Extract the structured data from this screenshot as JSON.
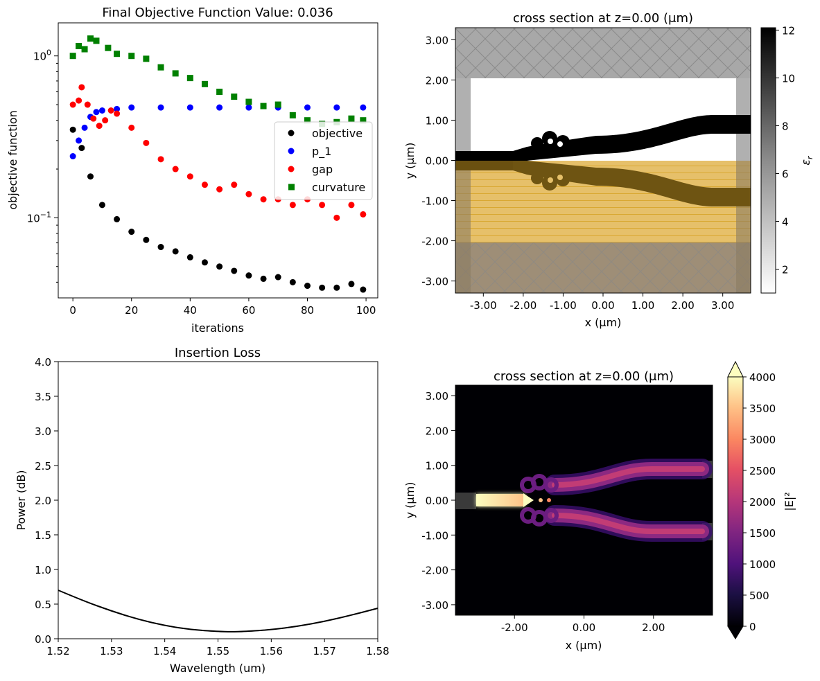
{
  "chart_data": [
    {
      "type": "scatter",
      "title": "Final Objective Function Value: 0.036",
      "xlabel": "iterations",
      "ylabel": "objective function",
      "yscale": "log",
      "xlim": [
        -5,
        104
      ],
      "ylim": [
        0.032,
        1.6
      ],
      "xticks": [
        0,
        20,
        40,
        60,
        80,
        100
      ],
      "yticks": [
        {
          "label": "10",
          "sup": "0",
          "value": 1
        },
        {
          "label": "10",
          "sup": "−1",
          "value": 0.1
        }
      ],
      "legend_position": "center-right",
      "series": [
        {
          "name": "objective",
          "color": "#000000",
          "marker": "circle",
          "points": [
            [
              0,
              0.35
            ],
            [
              3,
              0.27
            ],
            [
              6,
              0.18
            ],
            [
              10,
              0.12
            ],
            [
              15,
              0.098
            ],
            [
              20,
              0.082
            ],
            [
              25,
              0.073
            ],
            [
              30,
              0.066
            ],
            [
              35,
              0.062
            ],
            [
              40,
              0.057
            ],
            [
              45,
              0.053
            ],
            [
              50,
              0.05
            ],
            [
              55,
              0.047
            ],
            [
              60,
              0.044
            ],
            [
              65,
              0.042
            ],
            [
              70,
              0.043
            ],
            [
              75,
              0.04
            ],
            [
              80,
              0.038
            ],
            [
              85,
              0.037
            ],
            [
              90,
              0.037
            ],
            [
              95,
              0.039
            ],
            [
              99,
              0.036
            ]
          ]
        },
        {
          "name": "p_1",
          "color": "#0000ff",
          "marker": "circle",
          "points": [
            [
              0,
              0.24
            ],
            [
              2,
              0.3
            ],
            [
              4,
              0.36
            ],
            [
              6,
              0.42
            ],
            [
              8,
              0.45
            ],
            [
              10,
              0.46
            ],
            [
              15,
              0.47
            ],
            [
              20,
              0.48
            ],
            [
              30,
              0.48
            ],
            [
              40,
              0.48
            ],
            [
              50,
              0.48
            ],
            [
              60,
              0.48
            ],
            [
              70,
              0.48
            ],
            [
              80,
              0.48
            ],
            [
              90,
              0.48
            ],
            [
              99,
              0.48
            ]
          ]
        },
        {
          "name": "gap",
          "color": "#ff0000",
          "marker": "circle",
          "points": [
            [
              0,
              0.5
            ],
            [
              2,
              0.53
            ],
            [
              3,
              0.64
            ],
            [
              5,
              0.5
            ],
            [
              7,
              0.41
            ],
            [
              9,
              0.37
            ],
            [
              11,
              0.4
            ],
            [
              13,
              0.46
            ],
            [
              15,
              0.44
            ],
            [
              20,
              0.36
            ],
            [
              25,
              0.29
            ],
            [
              30,
              0.23
            ],
            [
              35,
              0.2
            ],
            [
              40,
              0.18
            ],
            [
              45,
              0.16
            ],
            [
              50,
              0.15
            ],
            [
              55,
              0.16
            ],
            [
              60,
              0.14
            ],
            [
              65,
              0.13
            ],
            [
              70,
              0.13
            ],
            [
              75,
              0.12
            ],
            [
              80,
              0.13
            ],
            [
              85,
              0.12
            ],
            [
              90,
              0.1
            ],
            [
              95,
              0.12
            ],
            [
              99,
              0.105
            ]
          ]
        },
        {
          "name": "curvature",
          "color": "#008000",
          "marker": "square",
          "points": [
            [
              0,
              1.0
            ],
            [
              2,
              1.15
            ],
            [
              4,
              1.1
            ],
            [
              6,
              1.28
            ],
            [
              8,
              1.24
            ],
            [
              12,
              1.12
            ],
            [
              15,
              1.03
            ],
            [
              20,
              1.0
            ],
            [
              25,
              0.96
            ],
            [
              30,
              0.85
            ],
            [
              35,
              0.78
            ],
            [
              40,
              0.73
            ],
            [
              45,
              0.67
            ],
            [
              50,
              0.6
            ],
            [
              55,
              0.56
            ],
            [
              60,
              0.52
            ],
            [
              65,
              0.49
            ],
            [
              70,
              0.5
            ],
            [
              75,
              0.43
            ],
            [
              80,
              0.4
            ],
            [
              85,
              0.38
            ],
            [
              90,
              0.39
            ],
            [
              95,
              0.41
            ],
            [
              99,
              0.4
            ]
          ]
        }
      ]
    },
    {
      "type": "heatmap",
      "title": "cross section at z=0.00 (μm)",
      "xlabel": "x (μm)",
      "ylabel": "y (μm)",
      "xlim": [
        -3.7,
        3.7
      ],
      "ylim": [
        -3.3,
        3.3
      ],
      "xticks": [
        "-3.00",
        "-2.00",
        "-1.00",
        "0.00",
        "1.00",
        "2.00",
        "3.00"
      ],
      "yticks": [
        "3.00",
        "2.00",
        "1.00",
        "0.00",
        "-1.00",
        "-2.00",
        "-3.00"
      ],
      "colorbar_label": "ε",
      "colorbar_label_sub": "r",
      "colorbar_ticks": [
        "12",
        "10",
        "8",
        "6",
        "4",
        "2"
      ],
      "colorbar_range": [
        1,
        12.1
      ],
      "colormap": "Greys"
    },
    {
      "type": "line",
      "title": "Insertion Loss",
      "xlabel": "Wavelength (um)",
      "ylabel": "Power (dB)",
      "xlim": [
        1.52,
        1.58
      ],
      "ylim": [
        0,
        4
      ],
      "xticks": [
        "1.52",
        "1.53",
        "1.54",
        "1.55",
        "1.56",
        "1.57",
        "1.58"
      ],
      "yticks": [
        "0.0",
        "0.5",
        "1.0",
        "1.5",
        "2.0",
        "2.5",
        "3.0",
        "3.5",
        "4.0"
      ],
      "series": [
        {
          "color": "#000000",
          "x": [
            1.52,
            1.525,
            1.53,
            1.535,
            1.54,
            1.545,
            1.55,
            1.5525,
            1.555,
            1.56,
            1.565,
            1.57,
            1.575,
            1.58
          ],
          "y": [
            0.7,
            0.54,
            0.4,
            0.28,
            0.19,
            0.13,
            0.105,
            0.1,
            0.105,
            0.13,
            0.18,
            0.25,
            0.34,
            0.44
          ]
        }
      ]
    },
    {
      "type": "heatmap",
      "title": "cross section at z=0.00 (μm)",
      "xlabel": "x (μm)",
      "ylabel": "y (μm)",
      "xlim": [
        -3.7,
        3.7
      ],
      "ylim": [
        -3.3,
        3.3
      ],
      "xticks": [
        "-2.00",
        "0.00",
        "2.00"
      ],
      "yticks": [
        "3.00",
        "2.00",
        "1.00",
        "0.00",
        "-1.00",
        "-2.00",
        "-3.00"
      ],
      "colorbar_label": "|E|²",
      "colorbar_ticks": [
        "4000",
        "3500",
        "3000",
        "2500",
        "2000",
        "1500",
        "1000",
        "500",
        "0"
      ],
      "colorbar_range": [
        0,
        4000
      ],
      "colormap": "magma"
    }
  ]
}
